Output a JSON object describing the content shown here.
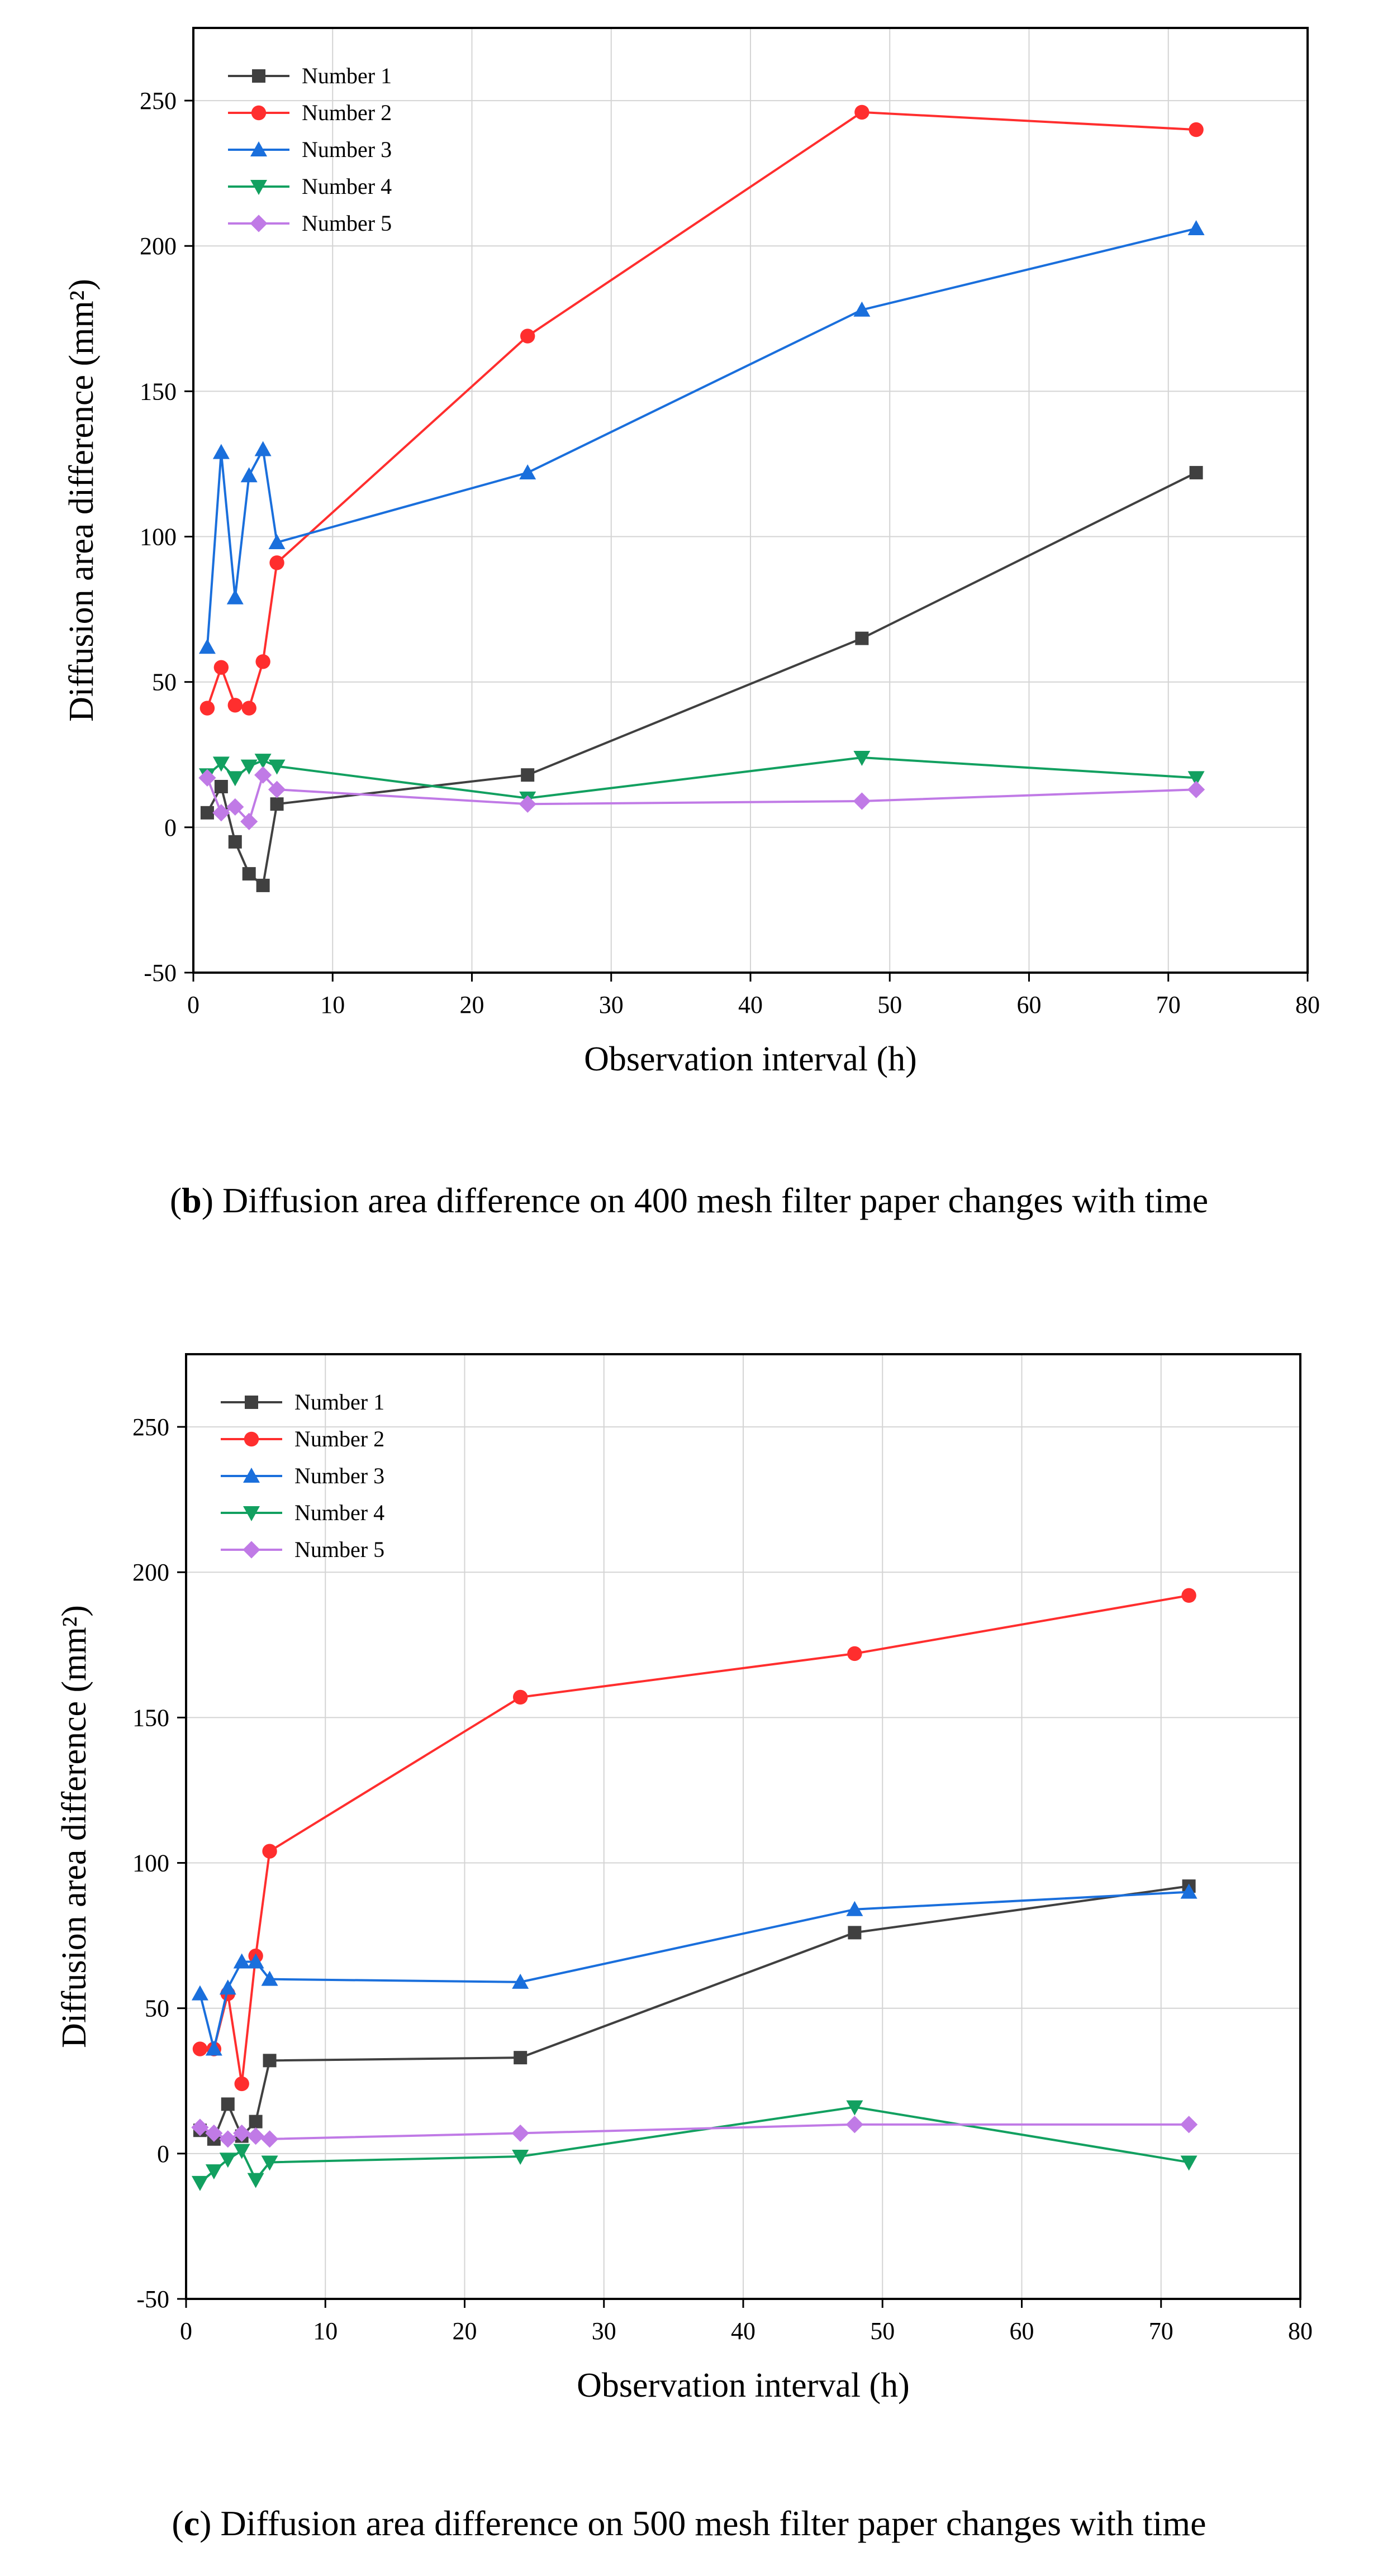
{
  "figure": {
    "captions": [
      {
        "letter": "b",
        "open": "(",
        "close": ")",
        "text": " Diffusion area difference on 400 mesh filter paper changes with time"
      },
      {
        "letter": "c",
        "open": "(",
        "close": ")",
        "text": " Diffusion area difference on 500 mesh filter paper changes with time"
      }
    ]
  },
  "chart_data": [
    {
      "type": "line",
      "panel": "b",
      "title": "",
      "xlabel": "Observation interval (h)",
      "ylabel": "Diffusion area difference (mm²)",
      "xlim": [
        0,
        80
      ],
      "ylim": [
        -50,
        275
      ],
      "xticks": [
        0,
        10,
        20,
        30,
        40,
        50,
        60,
        70,
        80
      ],
      "yticks": [
        -50,
        0,
        50,
        100,
        150,
        200,
        250
      ],
      "grid": true,
      "legend": "top-left",
      "x": [
        1,
        2,
        3,
        4,
        5,
        6,
        24,
        48,
        72
      ],
      "series": [
        {
          "name": "Number 1",
          "color": "#404040",
          "marker": "square",
          "values": [
            5,
            14,
            -5,
            -16,
            -20,
            8,
            18,
            65,
            122
          ]
        },
        {
          "name": "Number 2",
          "color": "#ff2e2e",
          "marker": "circle",
          "values": [
            41,
            55,
            42,
            41,
            57,
            91,
            169,
            246,
            240
          ]
        },
        {
          "name": "Number 3",
          "color": "#1a6fdc",
          "marker": "triangle-up",
          "values": [
            62,
            129,
            79,
            121,
            130,
            98,
            122,
            178,
            206
          ]
        },
        {
          "name": "Number 4",
          "color": "#12a060",
          "marker": "triangle-down",
          "values": [
            18,
            22,
            17,
            21,
            23,
            21,
            10,
            24,
            17
          ]
        },
        {
          "name": "Number 5",
          "color": "#c07ae6",
          "marker": "diamond",
          "values": [
            17,
            5,
            7,
            2,
            18,
            13,
            8,
            9,
            13
          ]
        }
      ]
    },
    {
      "type": "line",
      "panel": "c",
      "title": "",
      "xlabel": "Observation interval (h)",
      "ylabel": "Diffusion area difference (mm²)",
      "xlim": [
        0,
        80
      ],
      "ylim": [
        -50,
        275
      ],
      "xticks": [
        0,
        10,
        20,
        30,
        40,
        50,
        60,
        70,
        80
      ],
      "yticks": [
        -50,
        0,
        50,
        100,
        150,
        200,
        250
      ],
      "grid": true,
      "legend": "top-left",
      "x": [
        1,
        2,
        3,
        4,
        5,
        6,
        24,
        48,
        72
      ],
      "series": [
        {
          "name": "Number 1",
          "color": "#404040",
          "marker": "square",
          "values": [
            8,
            5,
            17,
            6,
            11,
            32,
            33,
            76,
            92
          ]
        },
        {
          "name": "Number 2",
          "color": "#ff2e2e",
          "marker": "circle",
          "values": [
            36,
            36,
            55,
            24,
            68,
            104,
            157,
            172,
            192
          ]
        },
        {
          "name": "Number 3",
          "color": "#1a6fdc",
          "marker": "triangle-up",
          "values": [
            55,
            36,
            57,
            66,
            66,
            60,
            59,
            84,
            90
          ]
        },
        {
          "name": "Number 4",
          "color": "#12a060",
          "marker": "triangle-down",
          "values": [
            -10,
            -6,
            -2,
            1,
            -9,
            -3,
            -1,
            16,
            -3
          ]
        },
        {
          "name": "Number 5",
          "color": "#c07ae6",
          "marker": "diamond",
          "values": [
            9,
            7,
            5,
            7,
            6,
            5,
            7,
            10,
            10
          ]
        }
      ]
    }
  ]
}
